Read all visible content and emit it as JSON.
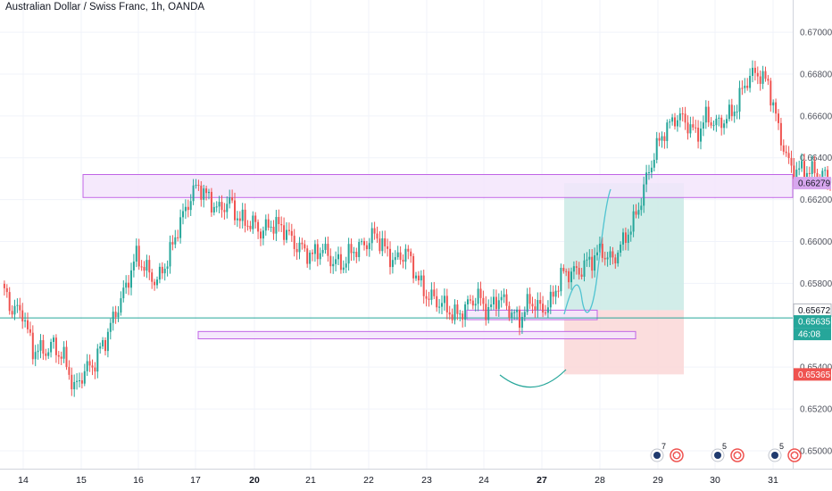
{
  "header": {
    "title": "Australian Dollar / Swiss Franc, 1h, OANDA"
  },
  "colors": {
    "up": "#26a69a",
    "down": "#ef5350",
    "zone_fill": "#f3e5fb",
    "zone_stroke": "#c064e6",
    "target_fill": "#cdebe7",
    "stop_fill": "#fbd9d9",
    "grid": "#f0f3fa",
    "current_line": "#26a69a"
  },
  "chart_data": {
    "type": "candlestick",
    "title": "Australian Dollar / Swiss Franc, 1h, OANDA",
    "y_axis": {
      "range": [
        0.6497,
        0.6706
      ],
      "ticks": [
        "0.67000",
        "0.66800",
        "0.66600",
        "0.66400",
        "0.66200",
        "0.66000",
        "0.65800",
        "0.65400",
        "0.65200",
        "0.65000"
      ]
    },
    "x_axis": {
      "ticks": [
        {
          "label": "14",
          "bold": false
        },
        {
          "label": "15",
          "bold": false
        },
        {
          "label": "16",
          "bold": false
        },
        {
          "label": "17",
          "bold": false
        },
        {
          "label": "20",
          "bold": true
        },
        {
          "label": "21",
          "bold": false
        },
        {
          "label": "22",
          "bold": false
        },
        {
          "label": "23",
          "bold": false
        },
        {
          "label": "24",
          "bold": false
        },
        {
          "label": "27",
          "bold": true
        },
        {
          "label": "28",
          "bold": false
        },
        {
          "label": "29",
          "bold": false
        },
        {
          "label": "30",
          "bold": false
        },
        {
          "label": "31",
          "bold": false
        }
      ]
    },
    "price_tags": [
      {
        "label": "0.66279",
        "kind": "zone"
      },
      {
        "label": "0.65672",
        "kind": "entry"
      },
      {
        "label": "0.65635",
        "kind": "current"
      },
      {
        "label": "46:08",
        "kind": "countdown"
      },
      {
        "label": "0.65365",
        "kind": "stop"
      }
    ],
    "anchors": [
      [
        0,
        0.6578
      ],
      [
        4,
        0.6566
      ],
      [
        8,
        0.6568
      ],
      [
        12,
        0.6548
      ],
      [
        16,
        0.6546
      ],
      [
        20,
        0.6552
      ],
      [
        24,
        0.6544
      ],
      [
        28,
        0.6528
      ],
      [
        32,
        0.654
      ],
      [
        36,
        0.6542
      ],
      [
        40,
        0.6552
      ],
      [
        44,
        0.6568
      ],
      [
        48,
        0.6578
      ],
      [
        52,
        0.6592
      ],
      [
        56,
        0.6588
      ],
      [
        60,
        0.658
      ],
      [
        64,
        0.659
      ],
      [
        68,
        0.6608
      ],
      [
        72,
        0.6618
      ],
      [
        76,
        0.6626
      ],
      [
        80,
        0.6622
      ],
      [
        84,
        0.6614
      ],
      [
        88,
        0.6618
      ],
      [
        92,
        0.6612
      ],
      [
        96,
        0.6608
      ],
      [
        100,
        0.6604
      ],
      [
        104,
        0.661
      ],
      [
        108,
        0.6606
      ],
      [
        112,
        0.66
      ],
      [
        116,
        0.6598
      ],
      [
        120,
        0.6592
      ],
      [
        124,
        0.6596
      ],
      [
        128,
        0.6592
      ],
      [
        132,
        0.6588
      ],
      [
        136,
        0.6596
      ],
      [
        140,
        0.66
      ],
      [
        144,
        0.6602
      ],
      [
        148,
        0.6596
      ],
      [
        152,
        0.6592
      ],
      [
        156,
        0.6594
      ],
      [
        160,
        0.6584
      ],
      [
        164,
        0.6576
      ],
      [
        168,
        0.657
      ],
      [
        172,
        0.6568
      ],
      [
        176,
        0.6566
      ],
      [
        180,
        0.6568
      ],
      [
        184,
        0.6574
      ],
      [
        188,
        0.6568
      ],
      [
        192,
        0.6572
      ],
      [
        196,
        0.6568
      ],
      [
        200,
        0.6564
      ],
      [
        204,
        0.657
      ],
      [
        208,
        0.6568
      ],
      [
        212,
        0.6572
      ],
      [
        216,
        0.6582
      ],
      [
        220,
        0.6586
      ],
      [
        224,
        0.6588
      ],
      [
        228,
        0.659
      ],
      [
        232,
        0.6596
      ],
      [
        236,
        0.6592
      ],
      [
        240,
        0.6598
      ],
      [
        244,
        0.661
      ],
      [
        248,
        0.6626
      ],
      [
        252,
        0.664
      ],
      [
        256,
        0.6654
      ],
      [
        260,
        0.666
      ],
      [
        264,
        0.6656
      ],
      [
        268,
        0.6652
      ],
      [
        272,
        0.666
      ],
      [
        276,
        0.6654
      ],
      [
        280,
        0.666
      ],
      [
        284,
        0.6666
      ],
      [
        288,
        0.6676
      ],
      [
        292,
        0.6682
      ],
      [
        296,
        0.6676
      ],
      [
        300,
        0.6652
      ],
      [
        304,
        0.6638
      ],
      [
        308,
        0.6634
      ],
      [
        312,
        0.6632
      ],
      [
        316,
        0.6634
      ],
      [
        320,
        0.663
      ],
      [
        324,
        0.6636
      ],
      [
        328,
        0.6638
      ],
      [
        332,
        0.6632
      ],
      [
        336,
        0.6612
      ],
      [
        340,
        0.66
      ],
      [
        344,
        0.6588
      ],
      [
        348,
        0.6582
      ],
      [
        352,
        0.658
      ],
      [
        356,
        0.6578
      ],
      [
        360,
        0.6568
      ],
      [
        364,
        0.6556
      ],
      [
        368,
        0.655
      ],
      [
        372,
        0.6546
      ],
      [
        376,
        0.655
      ],
      [
        380,
        0.6546
      ],
      [
        384,
        0.654
      ],
      [
        388,
        0.6546
      ],
      [
        392,
        0.6544
      ],
      [
        396,
        0.6542
      ],
      [
        400,
        0.655
      ],
      [
        404,
        0.6548
      ],
      [
        408,
        0.6552
      ],
      [
        412,
        0.656
      ],
      [
        416,
        0.6567
      ],
      [
        420,
        0.6563
      ]
    ],
    "overlays": [
      {
        "type": "zone",
        "price_top": 0.6632,
        "price_bottom": 0.6621
      },
      {
        "type": "zone",
        "price_top": 0.6557,
        "price_bottom": 0.6554
      },
      {
        "type": "zone",
        "price_top": 0.6565,
        "price_bottom": 0.6563
      },
      {
        "type": "target_area",
        "price_top": 0.66279,
        "price_bottom": 0.65672
      },
      {
        "type": "stop_area",
        "price_top": 0.65672,
        "price_bottom": 0.65365
      },
      {
        "type": "current_price_line",
        "price": 0.65635
      }
    ],
    "events": [
      {
        "badge": "7"
      },
      {
        "badge": "5"
      },
      {
        "badge": "5"
      }
    ]
  }
}
